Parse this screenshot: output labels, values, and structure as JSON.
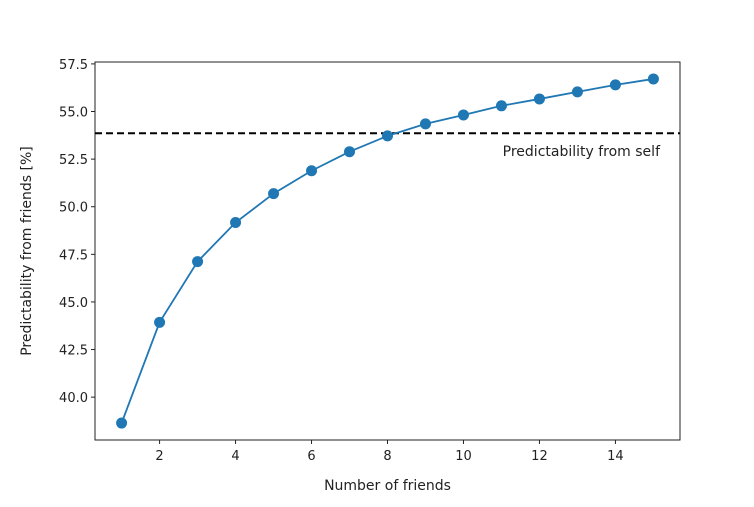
{
  "chart_data": {
    "type": "line",
    "title": "",
    "xlabel": "Number of friends",
    "ylabel": "Predictability from friends [%]",
    "x": [
      1,
      2,
      3,
      4,
      5,
      6,
      7,
      8,
      9,
      10,
      11,
      12,
      13,
      14,
      15
    ],
    "series": [
      {
        "values": [
          38.64,
          43.93,
          47.12,
          49.17,
          50.69,
          51.89,
          52.89,
          53.72,
          54.35,
          54.82,
          55.3,
          55.66,
          56.03,
          56.4,
          56.71
        ],
        "color": "#1f77b4",
        "marker": "circle"
      }
    ],
    "reference_line": {
      "y": 53.86,
      "label": "Predictability from self",
      "style": "dashed",
      "color": "#000000"
    },
    "xlim": [
      0.3,
      15.7
    ],
    "ylim": [
      37.75,
      57.6
    ],
    "xticks": [
      2,
      4,
      6,
      8,
      10,
      12,
      14
    ],
    "xtick_labels": [
      "2",
      "4",
      "6",
      "8",
      "10",
      "12",
      "14"
    ],
    "yticks": [
      40.0,
      42.5,
      45.0,
      47.5,
      50.0,
      52.5,
      55.0,
      57.5
    ],
    "ytick_labels": [
      "40.0",
      "42.5",
      "45.0",
      "47.5",
      "50.0",
      "52.5",
      "55.0",
      "57.5"
    ],
    "grid": false,
    "legend": "none"
  }
}
